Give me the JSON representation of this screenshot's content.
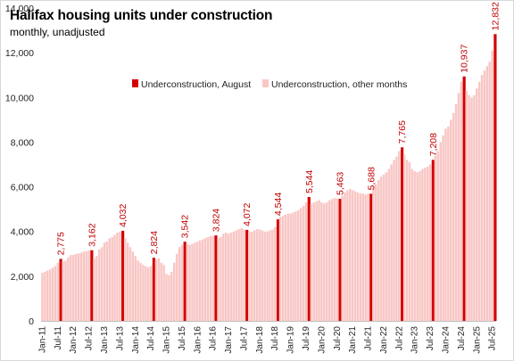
{
  "title": "Halifax housing units under construction",
  "subtitle": "monthly, unadjusted",
  "colors": {
    "august": "#d40000",
    "other": "#f8c7c5",
    "label": "#c00000"
  },
  "legend": {
    "august": "Underconstruction, August",
    "other": "Underconstruction, other months",
    "position": "top-center"
  },
  "chart_data": {
    "type": "bar",
    "grid": false,
    "ylim": [
      0,
      14000
    ],
    "y_ticks": [
      "0",
      "2,000",
      "4,000",
      "6,000",
      "8,000",
      "10,000",
      "12,000",
      "14,000"
    ],
    "x_ticks": [
      "Jan-11",
      "Jul-11",
      "Jan-12",
      "Jul-12",
      "Jan-13",
      "Jul-13",
      "Jan-14",
      "Jul-14",
      "Jan-15",
      "Jul-15",
      "Jan-16",
      "Jul-16",
      "Jan-17",
      "Jul-17",
      "Jan-18",
      "Jul-18",
      "Jan-19",
      "Jul-19",
      "Jan-20",
      "Jul-20",
      "Jan-21",
      "Jul-21",
      "Jan-22",
      "Jul-22",
      "Jan-23",
      "Jul-23",
      "Jan-24",
      "Jul-24",
      "Jan-25",
      "Jul-25"
    ],
    "start": "Jan-11",
    "series": [
      {
        "name": "Underconstruction, August",
        "note_months": "August of each year"
      },
      {
        "name": "Underconstruction, other months"
      }
    ],
    "august_labels": [
      "2,775",
      "3,162",
      "4,032",
      "2,824",
      "3,542",
      "3,824",
      "4,072",
      "4,544",
      "5,544",
      "5,463",
      "5,688",
      "7,765",
      "7,208",
      "10,937",
      "12,832"
    ],
    "values": [
      2150,
      2200,
      2250,
      2300,
      2380,
      2450,
      2600,
      2775,
      2650,
      2700,
      2850,
      2950,
      2950,
      3000,
      3020,
      3050,
      3100,
      3120,
      3150,
      3162,
      2800,
      2900,
      3200,
      3300,
      3500,
      3550,
      3700,
      3750,
      3850,
      3950,
      3980,
      4032,
      3700,
      3500,
      3300,
      3100,
      2900,
      2700,
      2600,
      2500,
      2450,
      2400,
      2450,
      2824,
      2750,
      2800,
      2600,
      2500,
      2100,
      2050,
      2200,
      2600,
      3000,
      3300,
      3400,
      3542,
      3450,
      3400,
      3450,
      3500,
      3550,
      3600,
      3650,
      3700,
      3750,
      3800,
      3810,
      3824,
      3700,
      3750,
      3900,
      3950,
      3900,
      3950,
      4000,
      4050,
      4100,
      4150,
      4100,
      4072,
      4000,
      3980,
      4050,
      4100,
      4100,
      4050,
      4000,
      4000,
      4050,
      4080,
      4200,
      4544,
      4650,
      4700,
      4750,
      4800,
      4800,
      4850,
      4900,
      4950,
      5050,
      5150,
      5300,
      5544,
      5250,
      5300,
      5350,
      5400,
      5300,
      5250,
      5300,
      5400,
      5450,
      5500,
      5480,
      5463,
      5600,
      5750,
      5850,
      5900,
      5850,
      5800,
      5750,
      5700,
      5700,
      5650,
      5700,
      5688,
      6000,
      6100,
      6300,
      6450,
      6550,
      6650,
      6800,
      7000,
      7200,
      7350,
      7600,
      7765,
      7450,
      7200,
      7100,
      6800,
      6700,
      6650,
      6700,
      6800,
      6850,
      6900,
      7000,
      7208,
      7400,
      7600,
      8000,
      8300,
      8600,
      8700,
      9000,
      9300,
      9700,
      10200,
      10700,
      10937,
      10300,
      10100,
      10000,
      10100,
      10400,
      10700,
      11000,
      11200,
      11400,
      11600,
      12100,
      12832
    ]
  }
}
